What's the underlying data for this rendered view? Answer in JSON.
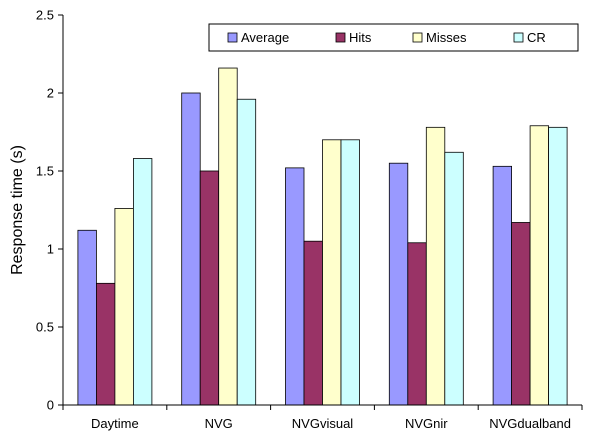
{
  "chart_data": {
    "type": "bar",
    "title": "",
    "xlabel": "",
    "ylabel": "Response time (s)",
    "ylim": [
      0,
      2.5
    ],
    "yticks": [
      "0",
      "0.5",
      "1",
      "1.5",
      "2",
      "2.5"
    ],
    "grid": false,
    "legend_position": "top-right",
    "categories": [
      "Daytime",
      "NVG",
      "NVGvisual",
      "NVGnir",
      "NVGdualband"
    ],
    "series": [
      {
        "name": "Average",
        "color": "#9999ff",
        "values": [
          1.12,
          2.0,
          1.52,
          1.55,
          1.53
        ]
      },
      {
        "name": "Hits",
        "color": "#993366",
        "values": [
          0.78,
          1.5,
          1.05,
          1.04,
          1.17
        ]
      },
      {
        "name": "Misses",
        "color": "#ffffcc",
        "values": [
          1.26,
          2.16,
          1.7,
          1.78,
          1.79
        ]
      },
      {
        "name": "CR",
        "color": "#ccffff",
        "values": [
          1.58,
          1.96,
          1.7,
          1.62,
          1.78
        ]
      }
    ]
  }
}
